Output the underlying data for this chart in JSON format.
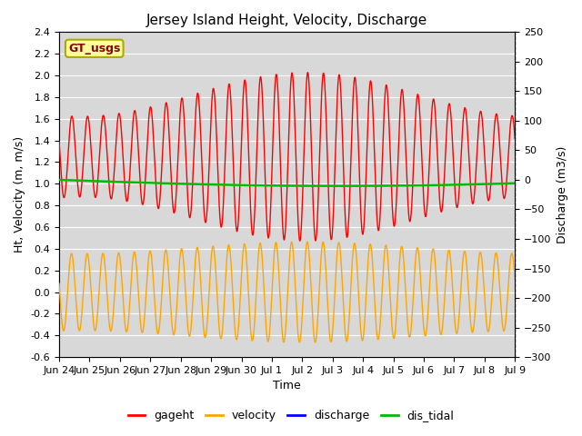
{
  "title": "Jersey Island Height, Velocity, Discharge",
  "xlabel": "Time",
  "ylabel_left": "Ht, Velocity (m, m/s)",
  "ylabel_right": "Discharge (m3/s)",
  "ylim_left": [
    -0.6,
    2.4
  ],
  "ylim_right": [
    -300,
    250
  ],
  "yticks_left": [
    -0.6,
    -0.4,
    -0.2,
    0.0,
    0.2,
    0.4,
    0.6,
    0.8,
    1.0,
    1.2,
    1.4,
    1.6,
    1.8,
    2.0,
    2.2,
    2.4
  ],
  "yticks_right": [
    -300,
    -250,
    -200,
    -150,
    -100,
    -50,
    0,
    50,
    100,
    150,
    200,
    250
  ],
  "bg_color": "#d8d8d8",
  "fig_bg_color": "#ffffff",
  "gageht_color": "#ff0000",
  "velocity_color": "#ffa500",
  "discharge_color": "#0000ff",
  "dis_tidal_color": "#00bb00",
  "gt_usgs_label": "GT_usgs",
  "gt_usgs_text_color": "#8b0000",
  "gt_usgs_bg_color": "#ffff99",
  "gt_usgs_border_color": "#aaaa00",
  "tidal_period_hours": 12.42,
  "line_width": 1.0
}
